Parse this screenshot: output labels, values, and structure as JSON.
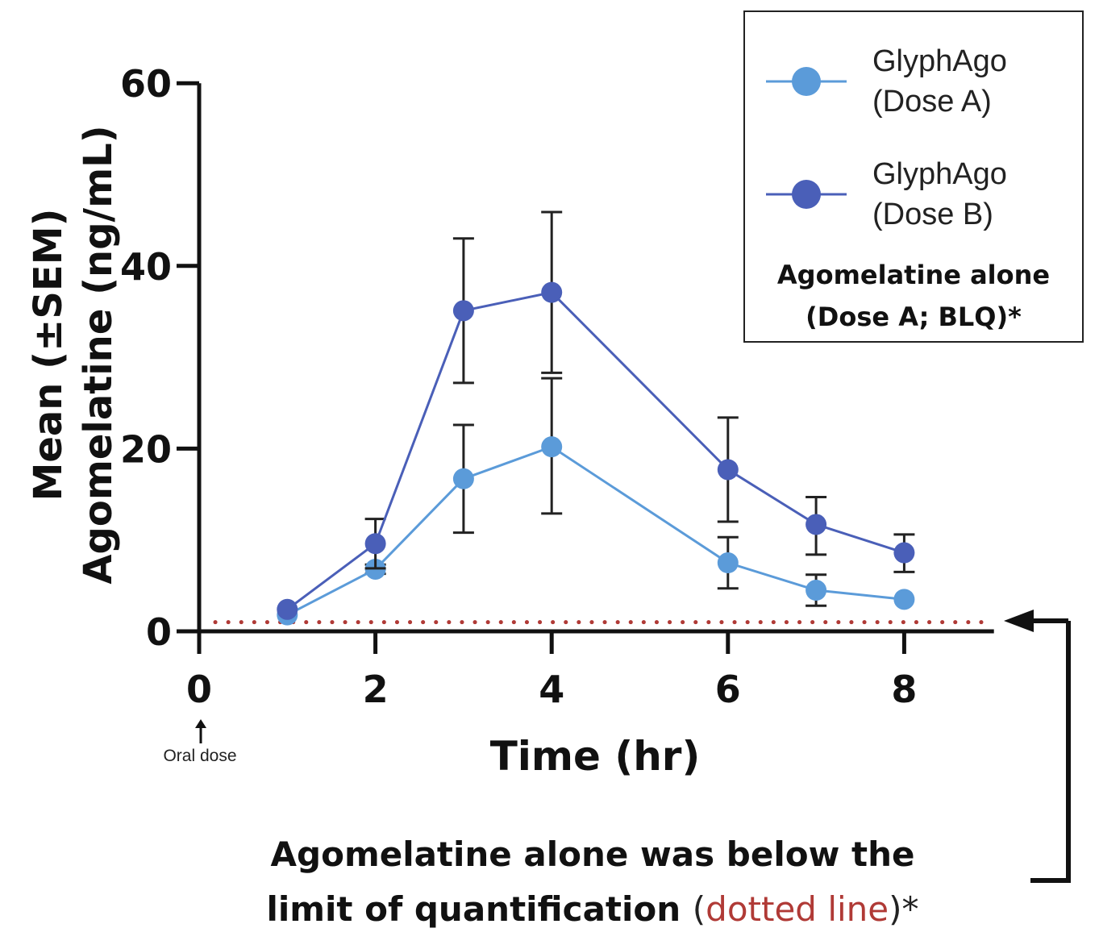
{
  "chart_data": {
    "type": "line",
    "xlabel": "Time (hr)",
    "ylabel_line1": "Mean (±SEM)",
    "ylabel_line2": "Agomelatine (ng/mL)",
    "xlim": [
      0,
      9
    ],
    "ylim": [
      0,
      60
    ],
    "x_ticks": [
      0,
      2,
      4,
      6,
      8
    ],
    "y_ticks": [
      0,
      20,
      40,
      60
    ],
    "grid": false,
    "legend_position": "top-right",
    "lloq": 1,
    "series": [
      {
        "name_line1": "GlyphAgo",
        "name_line2": "(Dose A)",
        "color": "#5b9bd9",
        "x": [
          1,
          2,
          3,
          4,
          6,
          7,
          8
        ],
        "y": [
          1.8,
          6.8,
          16.7,
          20.2,
          7.5,
          4.5,
          3.5
        ],
        "sem_upper": [
          1.8,
          7.3,
          22.6,
          27.7,
          10.3,
          6.2,
          3.5
        ],
        "sem_lower": [
          1.8,
          6.3,
          10.8,
          12.9,
          4.7,
          2.8,
          3.5
        ]
      },
      {
        "name_line1": "GlyphAgo",
        "name_line2": "(Dose B)",
        "color": "#4a5fb8",
        "x": [
          1,
          2,
          3,
          4,
          6,
          7,
          8
        ],
        "y": [
          2.4,
          9.6,
          35.1,
          37.1,
          17.7,
          11.7,
          8.6
        ],
        "sem_upper": [
          2.4,
          12.3,
          43.0,
          45.9,
          23.4,
          14.7,
          10.6
        ],
        "sem_lower": [
          2.4,
          6.9,
          27.2,
          28.3,
          12.0,
          8.4,
          6.5
        ]
      }
    ]
  },
  "legend": {
    "note_line1": "Agomelatine alone",
    "note_line2": "(Dose A; BLQ)*"
  },
  "annotations": {
    "oral_dose": "Oral dose",
    "caption_line1": "Agomelatine alone was below the",
    "caption_line2": "limit of quantification",
    "caption_paren_open": "(",
    "caption_dotted": "dotted line",
    "caption_paren_close": ")*"
  },
  "colors": {
    "lloq_line": "#b03a36",
    "axis": "#111111",
    "error_bar": "#222222"
  }
}
